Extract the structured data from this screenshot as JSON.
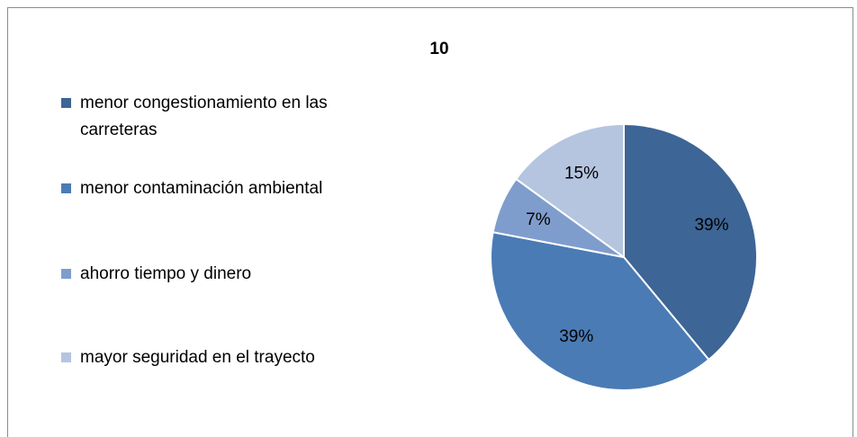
{
  "chart_data": {
    "type": "pie",
    "title": "10",
    "categories": [
      "menor congestionamiento en las carreteras",
      "menor contaminación ambiental",
      "ahorro tiempo y dinero",
      "mayor seguridad en el trayecto"
    ],
    "values": [
      39,
      39,
      7,
      15
    ],
    "value_labels": [
      "39%",
      "39%",
      "7%",
      "15%"
    ],
    "colors": [
      "#3d6595",
      "#4a7bb5",
      "#7f9dcc",
      "#b5c5df"
    ],
    "legend": "left"
  }
}
